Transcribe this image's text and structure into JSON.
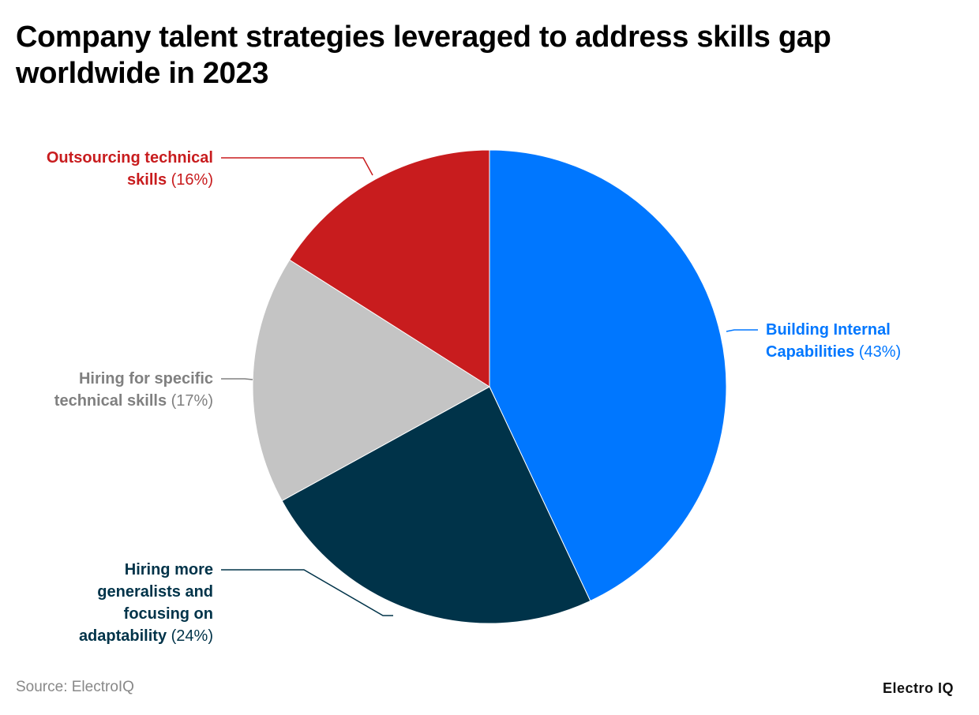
{
  "chart_data": {
    "type": "pie",
    "title": "Company talent strategies leveraged to address skills gap worldwide in 2023",
    "start_angle": "top",
    "direction": "clockwise",
    "slices": [
      {
        "label": "Building Internal Capabilities",
        "value": 43,
        "value_label": "(43%)",
        "color": "#0077ff",
        "text_color": "#0077ff"
      },
      {
        "label": "Hiring more generalists and focusing on adaptability",
        "value": 24,
        "value_label": "(24%)",
        "color": "#003349",
        "text_color": "#003349"
      },
      {
        "label": "Hiring for specific technical skills",
        "value": 17,
        "value_label": "(17%)",
        "color": "#c4c4c4",
        "text_color": "#808080"
      },
      {
        "label": "Outsourcing technical skills",
        "value": 16,
        "value_label": "(16%)",
        "color": "#c81c1e",
        "text_color": "#c81c1e"
      }
    ]
  },
  "footer": {
    "source": "Source: ElectroIQ",
    "logo": "Electro IQ"
  }
}
